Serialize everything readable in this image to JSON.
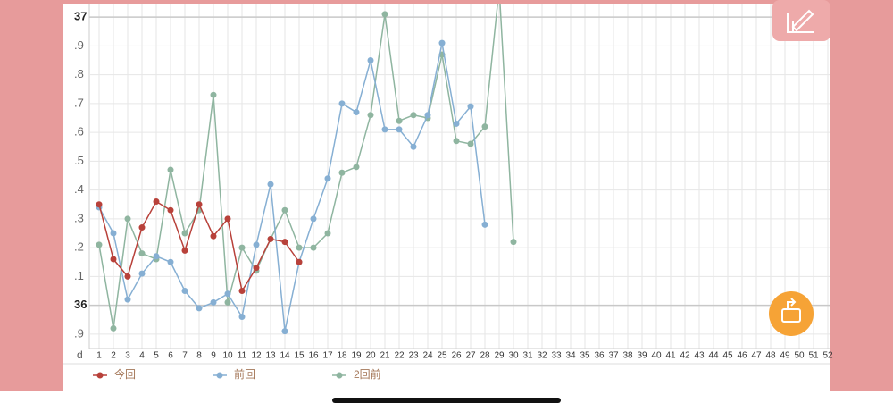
{
  "chart_data": {
    "type": "line",
    "xlabel": "d",
    "categories": [
      "1",
      "2",
      "3",
      "4",
      "5",
      "6",
      "7",
      "8",
      "9",
      "10",
      "11",
      "12",
      "13",
      "14",
      "15",
      "16",
      "17",
      "18",
      "19",
      "20",
      "21",
      "22",
      "23",
      "24",
      "25",
      "26",
      "27",
      "28",
      "29",
      "30",
      "31",
      "32",
      "33",
      "34",
      "35",
      "36",
      "37",
      "38",
      "39",
      "40",
      "41",
      "42",
      "43",
      "44",
      "45",
      "46",
      "47",
      "48",
      "49",
      "50",
      "51",
      "52"
    ],
    "ylim": [
      35.85,
      37.05
    ],
    "yticks": [
      {
        "value": 35.9,
        "label": ".9"
      },
      36,
      {
        "value": 36.1,
        "label": ".1"
      },
      {
        "value": 36.2,
        "label": ".2"
      },
      {
        "value": 36.3,
        "label": ".3"
      },
      {
        "value": 36.4,
        "label": ".4"
      },
      {
        "value": 36.5,
        "label": ".5"
      },
      {
        "value": 36.6,
        "label": ".6"
      },
      {
        "value": 36.7,
        "label": ".7"
      },
      {
        "value": 36.8,
        "label": ".8"
      },
      {
        "value": 36.9,
        "label": ".9"
      },
      37
    ],
    "grid": true,
    "series": [
      {
        "name": "今回",
        "color": "#b8413a",
        "values": [
          36.35,
          36.16,
          36.1,
          36.27,
          36.36,
          36.33,
          36.19,
          36.35,
          36.24,
          36.3,
          36.05,
          36.13,
          36.23,
          36.22,
          36.15,
          null,
          null,
          null,
          null,
          null,
          null,
          null,
          null,
          null,
          null,
          null,
          null,
          null,
          null,
          null,
          null,
          null,
          null,
          null,
          null,
          null,
          null,
          null,
          null,
          null,
          null,
          null,
          null,
          null,
          null,
          null,
          null,
          null,
          null,
          null,
          null,
          null
        ]
      },
      {
        "name": "前回",
        "color": "#86afd3",
        "values": [
          36.34,
          36.25,
          36.02,
          36.11,
          36.17,
          36.15,
          36.05,
          35.99,
          36.01,
          36.04,
          35.96,
          36.21,
          36.42,
          35.91,
          36.15,
          36.3,
          36.44,
          36.7,
          36.67,
          36.85,
          36.61,
          36.61,
          36.55,
          36.66,
          36.91,
          36.63,
          36.69,
          36.28,
          null,
          null,
          null,
          null,
          null,
          null,
          null,
          null,
          null,
          null,
          null,
          null,
          null,
          null,
          null,
          null,
          null,
          null,
          null,
          null,
          null,
          null,
          null,
          null
        ]
      },
      {
        "name": "2回前",
        "color": "#8fb5a0",
        "values": [
          36.21,
          35.92,
          36.3,
          36.18,
          36.16,
          36.47,
          36.25,
          36.33,
          36.73,
          36.01,
          36.2,
          36.12,
          36.23,
          36.33,
          36.2,
          36.2,
          36.25,
          36.46,
          36.48,
          36.66,
          37.01,
          36.64,
          36.66,
          36.65,
          36.87,
          36.57,
          36.56,
          36.62,
          37.1,
          36.22,
          null,
          null,
          null,
          null,
          null,
          null,
          null,
          null,
          null,
          null,
          null,
          null,
          null,
          null,
          null,
          null,
          null,
          null,
          null,
          null,
          null,
          null
        ]
      }
    ]
  }
}
